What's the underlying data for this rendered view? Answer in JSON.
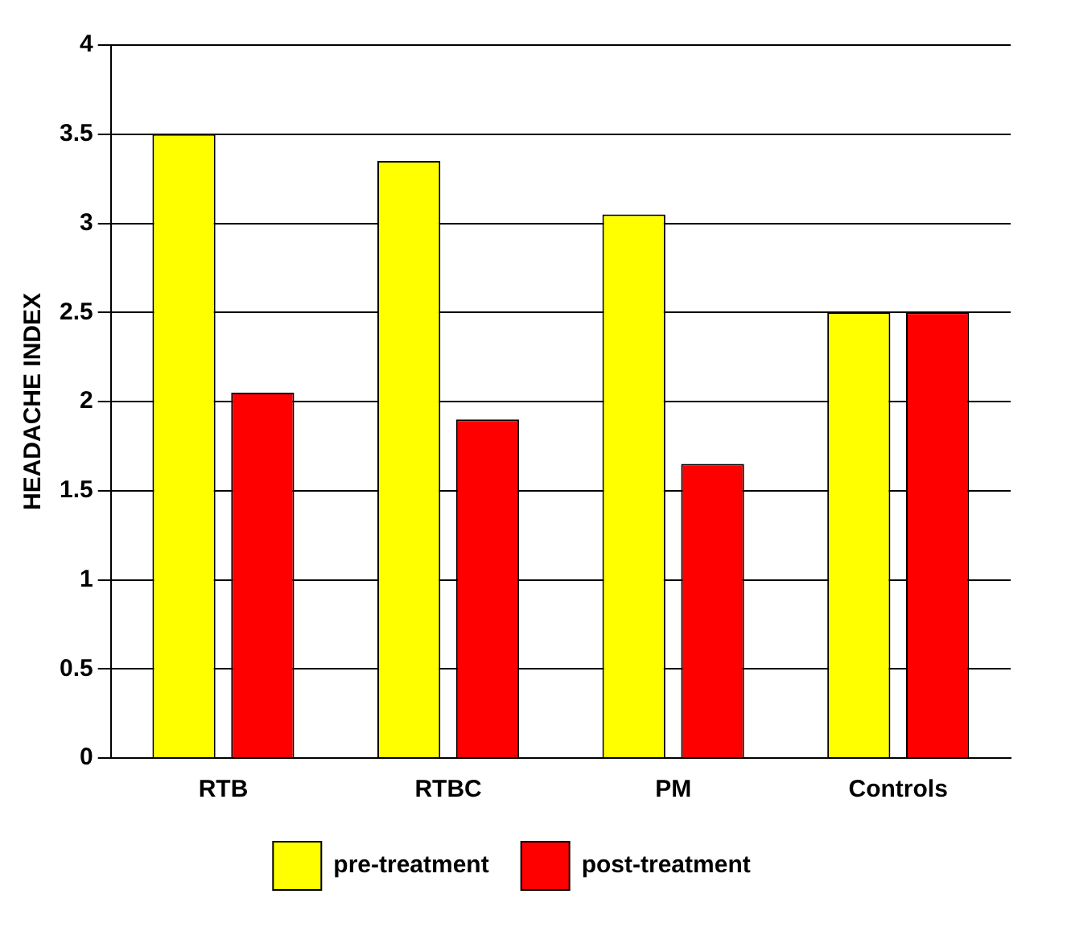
{
  "chart_data": {
    "type": "bar",
    "ylabel": "HEADACHE INDEX",
    "categories": [
      "RTB",
      "RTBC",
      "PM",
      "Controls"
    ],
    "series": [
      {
        "name": "pre-treatment",
        "color": "#ffff00",
        "values": [
          3.5,
          3.35,
          3.05,
          2.5
        ]
      },
      {
        "name": "post-treatment",
        "color": "#ff0000",
        "values": [
          2.05,
          1.9,
          1.65,
          2.5
        ]
      }
    ],
    "ylim": [
      0,
      4
    ],
    "yticks": [
      0,
      0.5,
      1,
      1.5,
      2,
      2.5,
      3,
      3.5,
      4
    ],
    "grid": "y",
    "legend": "bottom"
  }
}
